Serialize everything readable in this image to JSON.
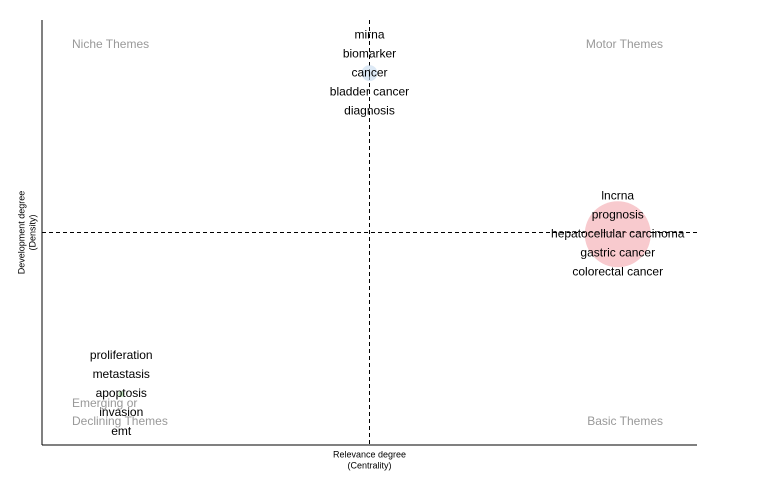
{
  "chart_data": {
    "type": "bubble",
    "x_label": [
      "Relevance degree",
      "(Centrality)"
    ],
    "y_label": [
      "Development degree",
      "(Density)"
    ],
    "quadrant_labels": {
      "top_left": [
        "Niche Themes"
      ],
      "top_right": [
        "Motor Themes"
      ],
      "bottom_left": [
        "Emerging or",
        "Declining Themes"
      ],
      "bottom_right": [
        "Basic Themes"
      ]
    },
    "xlim": [
      0,
      1
    ],
    "ylim": [
      0,
      1
    ],
    "x_reference": 0.5,
    "y_reference": 0.5,
    "clusters": [
      {
        "color": "#c6dbef",
        "x": 0.5,
        "y": 0.875,
        "size": 8,
        "labels": [
          "mirna",
          "biomarker",
          "cancer",
          "bladder cancer",
          "diagnosis"
        ]
      },
      {
        "color": "#f4a6ae",
        "x": 0.879,
        "y": 0.496,
        "size": 33,
        "labels": [
          "lncrna",
          "prognosis",
          "hepatocellular carcinoma",
          "gastric cancer",
          "colorectal cancer"
        ]
      },
      {
        "color": "#a1d99b",
        "x": 0.121,
        "y": 0.12,
        "size": 3,
        "labels": [
          "proliferation",
          "metastasis",
          "apoptosis",
          "invasion",
          "emt"
        ]
      }
    ]
  }
}
